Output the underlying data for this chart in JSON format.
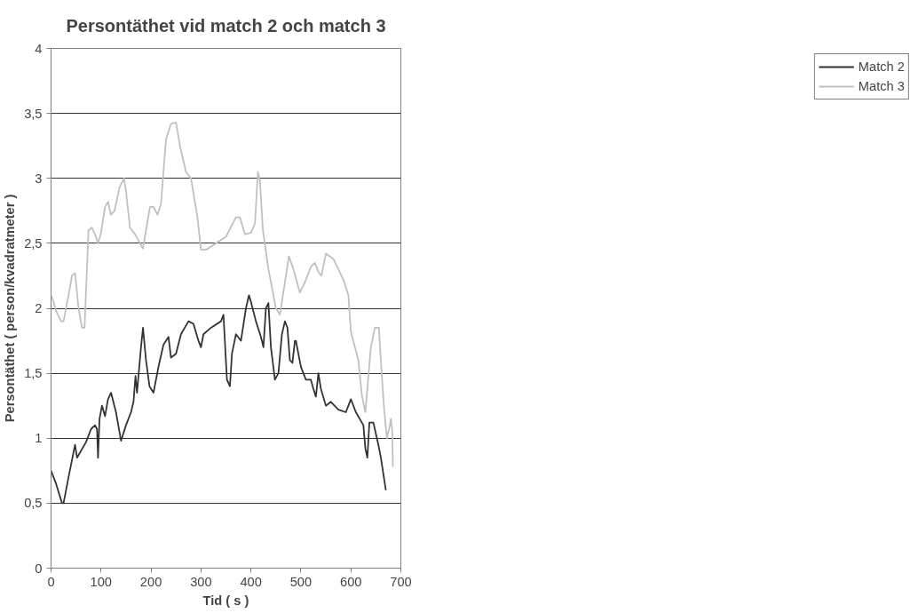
{
  "chart_data": {
    "type": "line",
    "title": "Persontäthet vid match 2 och match 3",
    "xlabel": "Tid ( s )",
    "ylabel": "Persontäthet ( person/kvadratmeter )",
    "xlim": [
      0,
      700
    ],
    "xticks": [
      0,
      100,
      200,
      300,
      400,
      500,
      600,
      700
    ],
    "ylim": [
      0,
      4
    ],
    "yticks": [
      0,
      {
        "value": 0.5,
        "label": "0,5"
      },
      1,
      {
        "value": 1.5,
        "label": "1,5"
      },
      2,
      {
        "value": 2.5,
        "label": "2,5"
      },
      3,
      {
        "value": 3.5,
        "label": "3,5"
      },
      4
    ],
    "grid": "y",
    "legend": "right",
    "marker": "none",
    "line_style": "solid",
    "series": [
      {
        "name": "Match 2",
        "color": "#333333",
        "x": [
          0,
          10,
          22,
          25,
          35,
          48,
          52,
          70,
          80,
          88,
          92,
          94,
          97,
          102,
          108,
          114,
          120,
          130,
          140,
          150,
          160,
          165,
          169,
          172,
          180,
          184,
          190,
          197,
          205,
          215,
          225,
          235,
          240,
          250,
          260,
          275,
          285,
          295,
          300,
          305,
          320,
          340,
          345,
          352,
          358,
          362,
          370,
          380,
          390,
          396,
          400,
          410,
          420,
          425,
          430,
          435,
          440,
          448,
          455,
          462,
          468,
          473,
          478,
          483,
          488,
          490,
          500,
          510,
          520,
          525,
          530,
          535,
          540,
          550,
          560,
          575,
          590,
          600,
          610,
          625,
          629,
          633,
          637,
          645,
          655,
          660,
          670
        ],
        "values": [
          0.75,
          0.65,
          0.5,
          0.5,
          0.7,
          0.95,
          0.85,
          0.97,
          1.07,
          1.1,
          1.07,
          0.85,
          1.15,
          1.25,
          1.17,
          1.3,
          1.35,
          1.2,
          0.98,
          1.1,
          1.2,
          1.28,
          1.48,
          1.35,
          1.7,
          1.85,
          1.6,
          1.4,
          1.35,
          1.55,
          1.72,
          1.78,
          1.62,
          1.65,
          1.8,
          1.9,
          1.88,
          1.75,
          1.7,
          1.8,
          1.85,
          1.9,
          1.95,
          1.45,
          1.4,
          1.65,
          1.8,
          1.75,
          2.0,
          2.1,
          2.05,
          1.9,
          1.78,
          1.7,
          2.0,
          2.04,
          1.7,
          1.45,
          1.5,
          1.8,
          1.9,
          1.85,
          1.6,
          1.58,
          1.75,
          1.75,
          1.55,
          1.45,
          1.45,
          1.38,
          1.32,
          1.5,
          1.38,
          1.25,
          1.28,
          1.22,
          1.2,
          1.3,
          1.2,
          1.1,
          0.92,
          0.85,
          1.12,
          1.12,
          0.95,
          0.85,
          0.6
        ]
      },
      {
        "name": "Match 3",
        "color": "#c0c0c0",
        "x": [
          0,
          5,
          10,
          20,
          25,
          35,
          42,
          48,
          55,
          62,
          67,
          75,
          82,
          90,
          94,
          100,
          108,
          114,
          120,
          127,
          137,
          146,
          150,
          158,
          168,
          178,
          184,
          190,
          198,
          205,
          213,
          220,
          230,
          240,
          250,
          258,
          270,
          280,
          293,
          300,
          310,
          330,
          350,
          370,
          378,
          388,
          400,
          408,
          414,
          418,
          424,
          435,
          450,
          458,
          468,
          476,
          485,
          498,
          508,
          520,
          528,
          535,
          541,
          550,
          565,
          585,
          595,
          600,
          615,
          622,
          629,
          640,
          648,
          656,
          660,
          666,
          672,
          678,
          680,
          683,
          684
        ],
        "values": [
          2.1,
          2.05,
          1.98,
          1.9,
          1.9,
          2.1,
          2.25,
          2.27,
          2.0,
          1.85,
          1.85,
          2.6,
          2.62,
          2.55,
          2.5,
          2.58,
          2.78,
          2.82,
          2.72,
          2.75,
          2.93,
          3.0,
          2.9,
          2.62,
          2.57,
          2.5,
          2.46,
          2.6,
          2.78,
          2.78,
          2.72,
          2.8,
          3.3,
          3.42,
          3.43,
          3.25,
          3.05,
          3.0,
          2.7,
          2.45,
          2.45,
          2.5,
          2.55,
          2.7,
          2.7,
          2.57,
          2.58,
          2.65,
          3.05,
          2.98,
          2.6,
          2.3,
          2.0,
          1.95,
          2.2,
          2.4,
          2.3,
          2.12,
          2.2,
          2.32,
          2.35,
          2.28,
          2.25,
          2.42,
          2.38,
          2.22,
          2.1,
          1.82,
          1.6,
          1.33,
          1.2,
          1.7,
          1.85,
          1.85,
          1.6,
          1.25,
          1.0,
          1.1,
          1.15,
          1.05,
          0.78
        ]
      }
    ]
  }
}
